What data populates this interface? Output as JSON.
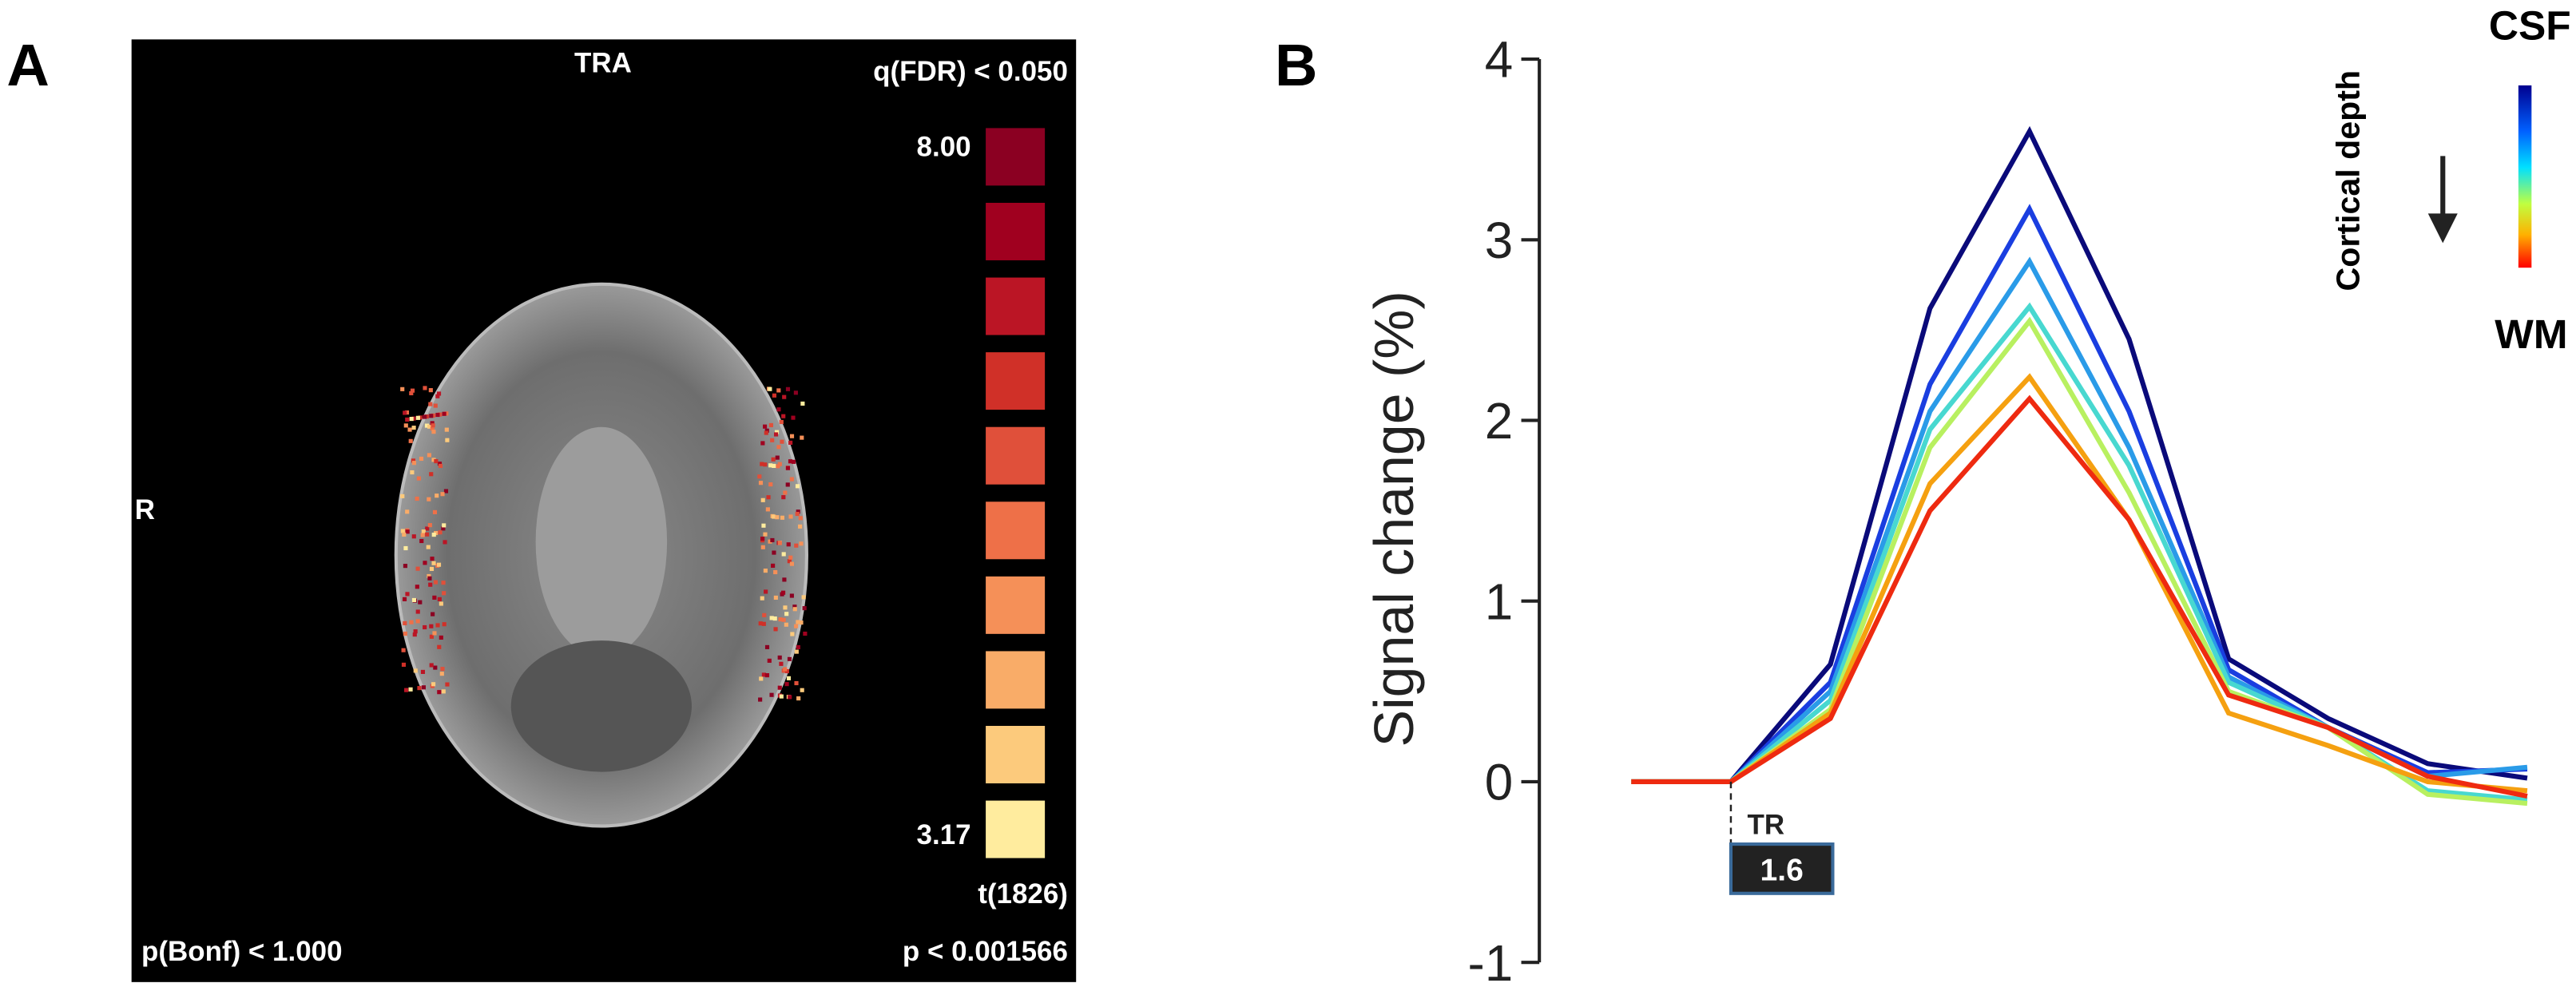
{
  "panel_labels": [
    "A",
    "B"
  ],
  "panel_a": {
    "orientation": "TRA",
    "side": "R",
    "threshold": "q(FDR) < 0.050",
    "scale_max": "8.00",
    "scale_min": "3.17",
    "stat": "t(1826)",
    "bonferroni": "p(Bonf) < 1.000",
    "p_value": "p < 0.001566"
  },
  "chart_data": {
    "type": "line",
    "ylabel": "Signal change (%)",
    "categories": [
      null,
      null,
      null,
      null,
      null,
      null,
      null,
      null,
      null,
      null
    ],
    "ylim": [
      -1,
      4
    ],
    "yticks": [
      -1,
      0,
      1,
      2,
      3,
      4
    ],
    "annotations": {
      "tr_label": "TR",
      "tr_value": "1.6"
    },
    "colorbar": {
      "top": "CSF",
      "bottom": "WM",
      "label": "Cortical depth"
    },
    "series": [
      {
        "color": "#0a0a7a",
        "values": [
          0,
          0,
          0.65,
          2.62,
          3.6,
          2.45,
          0.68,
          0.35,
          0.1,
          0.02
        ]
      },
      {
        "color": "#1a3ee0",
        "values": [
          0,
          0,
          0.55,
          2.2,
          3.17,
          2.05,
          0.62,
          0.3,
          0.05,
          0.07
        ]
      },
      {
        "color": "#2a9be8",
        "values": [
          0,
          0,
          0.5,
          2.05,
          2.88,
          1.85,
          0.58,
          0.3,
          0.03,
          0.08
        ]
      },
      {
        "color": "#48d8d0",
        "values": [
          0,
          0,
          0.45,
          1.95,
          2.63,
          1.75,
          0.55,
          0.3,
          -0.05,
          -0.1
        ]
      },
      {
        "color": "#b8f060",
        "values": [
          0,
          0,
          0.4,
          1.85,
          2.55,
          1.6,
          0.5,
          0.3,
          -0.07,
          -0.12
        ]
      },
      {
        "color": "#f5a010",
        "values": [
          0,
          0,
          0.38,
          1.65,
          2.24,
          1.45,
          0.38,
          0.2,
          0.0,
          -0.05
        ]
      },
      {
        "color": "#ee2a10",
        "values": [
          0,
          0,
          0.35,
          1.5,
          2.12,
          1.45,
          0.48,
          0.3,
          0.03,
          -0.08
        ]
      }
    ]
  }
}
